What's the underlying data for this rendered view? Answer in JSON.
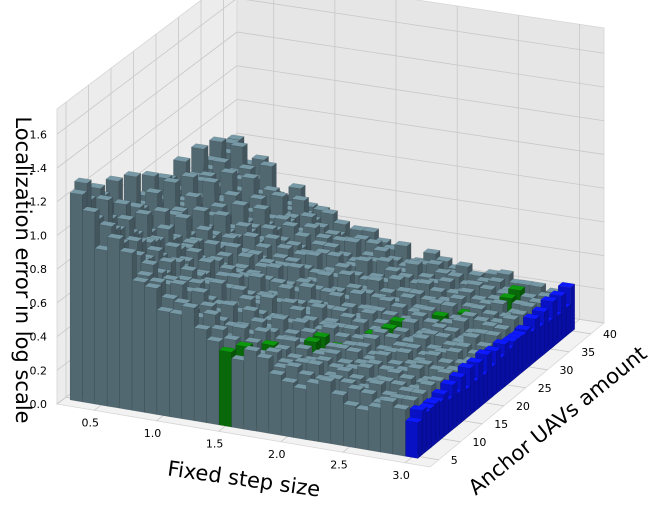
{
  "chart_data": {
    "type": "bar3d",
    "xlabel": "Fixed step size",
    "ylabel": "Anchor UAVs amount",
    "zlabel": "Localization error in log scale",
    "x_ticks": [
      "0.5",
      "1.0",
      "1.5",
      "2.0",
      "2.5",
      "3.0"
    ],
    "y_ticks": [
      "5",
      "10",
      "15",
      "20",
      "25",
      "30",
      "35",
      "40"
    ],
    "z_ticks": [
      "0.0",
      "0.2",
      "0.4",
      "0.6",
      "0.8",
      "1.0",
      "1.2",
      "1.4",
      "1.6"
    ],
    "xlim": [
      0.2,
      3.2
    ],
    "ylim": [
      3,
      43
    ],
    "zlim": [
      0,
      1.75
    ],
    "step_sizes": [
      0.3,
      0.4,
      0.5,
      0.6,
      0.7,
      0.8,
      0.9,
      1.0,
      1.1,
      1.2,
      1.3,
      1.4,
      1.5,
      1.6,
      1.7,
      1.8,
      1.9,
      2.0,
      2.1,
      2.2,
      2.3,
      2.4,
      2.5,
      2.6,
      2.7,
      2.8,
      2.9,
      3.0
    ],
    "anchor_amounts": [
      5,
      6,
      7,
      8,
      9,
      10,
      11,
      12,
      13,
      14,
      15,
      16,
      17,
      18,
      19,
      20,
      21,
      22,
      23,
      24,
      25,
      26,
      27,
      28,
      29,
      30,
      31,
      32,
      33,
      34,
      35,
      36,
      37,
      38,
      39,
      40
    ],
    "grid": true,
    "colors": {
      "bars": "#5f7a85",
      "bars_low": "#a9d3e0",
      "highlight_green": "#0a7a0a",
      "highlight_blue": "#0a14e6"
    }
  }
}
